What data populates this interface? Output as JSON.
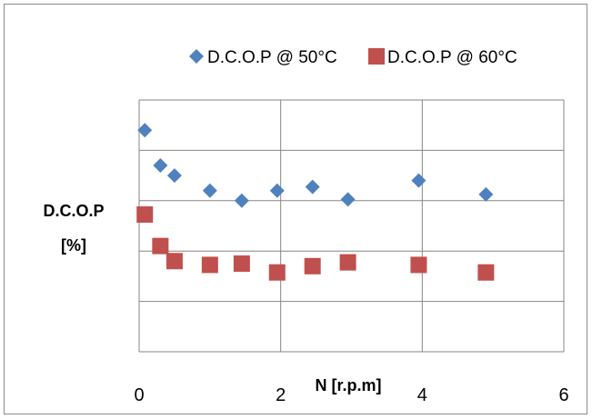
{
  "chart_data": {
    "type": "scatter",
    "xlabel": "N [r.p.m]",
    "ylabel_lines": [
      "D.C.O.P",
      "[%]"
    ],
    "xlim": [
      0,
      6
    ],
    "x_ticks": [
      "0",
      "2",
      "4",
      "6"
    ],
    "y_tick_labels_shown": false,
    "grid": true,
    "legend_position": "top",
    "series": [
      {
        "name": "D.C.O.P @ 50°C",
        "marker": "diamond",
        "color": "#4f81bd",
        "points": [
          [
            0.08,
            0.88
          ],
          [
            0.3,
            0.74
          ],
          [
            0.5,
            0.7
          ],
          [
            1.0,
            0.64
          ],
          [
            1.45,
            0.6
          ],
          [
            1.95,
            0.64
          ],
          [
            2.45,
            0.655
          ],
          [
            2.95,
            0.605
          ],
          [
            3.95,
            0.68
          ],
          [
            4.9,
            0.625
          ]
        ]
      },
      {
        "name": "D.C.O.P @ 60°C",
        "marker": "square",
        "color": "#c0504d",
        "points": [
          [
            0.08,
            0.545
          ],
          [
            0.3,
            0.42
          ],
          [
            0.5,
            0.36
          ],
          [
            1.0,
            0.345
          ],
          [
            1.45,
            0.35
          ],
          [
            1.95,
            0.315
          ],
          [
            2.45,
            0.34
          ],
          [
            2.95,
            0.355
          ],
          [
            3.95,
            0.345
          ],
          [
            4.9,
            0.315
          ]
        ]
      }
    ]
  }
}
